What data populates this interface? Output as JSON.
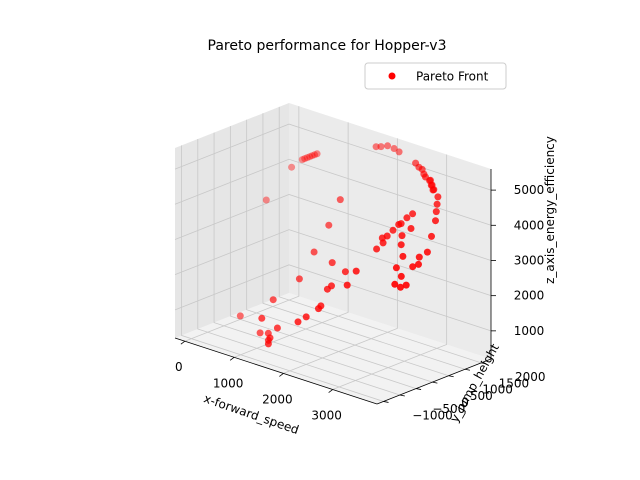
{
  "chart_data": {
    "type": "scatter",
    "projection": "3d",
    "title": "Pareto performance for Hopper-v3",
    "xlabel": "x-forward_speed",
    "ylabel": "y_jump_height",
    "zlabel": "z_axis_energy_efficiency",
    "x_ticks": [
      "0",
      "1000",
      "2000",
      "3000"
    ],
    "y_ticks": [
      "−1000",
      "−500",
      "0",
      "500",
      "1000",
      "1500",
      "2000"
    ],
    "z_ticks": [
      "1000",
      "2000",
      "3000",
      "4000",
      "5000"
    ],
    "grid": true,
    "legend": {
      "position": "upper-right",
      "entries": [
        "Pareto Front"
      ]
    },
    "series": [
      {
        "name": "Pareto Front",
        "color": "#ff0000",
        "points": [
          {
            "x": 0,
            "y": 1300,
            "z": 3300
          },
          {
            "x": 250,
            "y": 1700,
            "z": 4200
          },
          {
            "x": 400,
            "y": 1800,
            "z": 4450
          },
          {
            "x": 450,
            "y": 1800,
            "z": 4500
          },
          {
            "x": 500,
            "y": 1800,
            "z": 4550
          },
          {
            "x": 550,
            "y": 1800,
            "z": 4600
          },
          {
            "x": 600,
            "y": 1800,
            "z": 4650
          },
          {
            "x": 650,
            "y": 1800,
            "z": 4700
          },
          {
            "x": 700,
            "y": 1800,
            "z": 4750
          },
          {
            "x": 200,
            "y": 200,
            "z": 500
          },
          {
            "x": 800,
            "y": -100,
            "z": 400
          },
          {
            "x": 1000,
            "y": -150,
            "z": 500
          },
          {
            "x": 1100,
            "y": -300,
            "z": 400
          },
          {
            "x": 1200,
            "y": -400,
            "z": 550
          },
          {
            "x": 1300,
            "y": -600,
            "z": 500
          },
          {
            "x": 1350,
            "y": -400,
            "z": 900
          },
          {
            "x": 1100,
            "y": -500,
            "z": 1100
          },
          {
            "x": 1000,
            "y": 0,
            "z": 1400
          },
          {
            "x": 1400,
            "y": 200,
            "z": 2100
          },
          {
            "x": 1500,
            "y": 500,
            "z": 2800
          },
          {
            "x": 1600,
            "y": 800,
            "z": 3500
          },
          {
            "x": 1700,
            "y": 1000,
            "z": 4200
          },
          {
            "x": 1900,
            "y": -600,
            "z": 1400
          },
          {
            "x": 2000,
            "y": -500,
            "z": 1550
          },
          {
            "x": 2150,
            "y": -350,
            "z": 1800
          },
          {
            "x": 2200,
            "y": -350,
            "z": 1900
          },
          {
            "x": 2200,
            "y": -150,
            "z": 2300
          },
          {
            "x": 2250,
            "y": -100,
            "z": 2400
          },
          {
            "x": 2400,
            "y": 100,
            "z": 2800
          },
          {
            "x": 2000,
            "y": 300,
            "z": 2800
          },
          {
            "x": 2700,
            "y": -300,
            "z": 2700
          },
          {
            "x": 2750,
            "y": -100,
            "z": 3050
          },
          {
            "x": 2900,
            "y": 300,
            "z": 3600
          },
          {
            "x": 2950,
            "y": 400,
            "z": 3900
          },
          {
            "x": 3000,
            "y": 350,
            "z": 3800
          },
          {
            "x": 3050,
            "y": 400,
            "z": 4000
          },
          {
            "x": 3100,
            "y": 500,
            "z": 4150
          },
          {
            "x": 3150,
            "y": 600,
            "z": 4300
          },
          {
            "x": 3200,
            "y": 600,
            "z": 4350
          },
          {
            "x": 3250,
            "y": 700,
            "z": 4500
          },
          {
            "x": 3300,
            "y": 800,
            "z": 4600
          },
          {
            "x": 3400,
            "y": 600,
            "z": 4300
          },
          {
            "x": 3400,
            "y": 300,
            "z": 3950
          },
          {
            "x": 3350,
            "y": 400,
            "z": 4150
          },
          {
            "x": 3500,
            "y": 200,
            "z": 3700
          },
          {
            "x": 3500,
            "y": 0,
            "z": 3450
          },
          {
            "x": 3600,
            "y": 0,
            "z": 3250
          },
          {
            "x": 3600,
            "y": -200,
            "z": 3100
          },
          {
            "x": 3650,
            "y": -100,
            "z": 3000
          },
          {
            "x": 3700,
            "y": 0,
            "z": 3050
          },
          {
            "x": 3700,
            "y": 200,
            "z": 3500
          },
          {
            "x": 3700,
            "y": 400,
            "z": 3700
          },
          {
            "x": 3750,
            "y": 300,
            "z": 3550
          },
          {
            "x": 3800,
            "y": 500,
            "z": 3850
          },
          {
            "x": 3750,
            "y": 700,
            "z": 4200
          },
          {
            "x": 3700,
            "y": 900,
            "z": 4550
          },
          {
            "x": 3650,
            "y": 1000,
            "z": 4750
          },
          {
            "x": 3600,
            "y": 1100,
            "z": 4900
          },
          {
            "x": 3550,
            "y": 1200,
            "z": 5050
          },
          {
            "x": 3400,
            "y": 1300,
            "z": 5150
          },
          {
            "x": 3300,
            "y": 1400,
            "z": 5200
          },
          {
            "x": 3200,
            "y": 1500,
            "z": 5250
          },
          {
            "x": 3100,
            "y": 1500,
            "z": 5300
          },
          {
            "x": 3000,
            "y": 1600,
            "z": 5300
          },
          {
            "x": 2900,
            "y": 1700,
            "z": 5350
          },
          {
            "x": 2800,
            "y": 1750,
            "z": 5350
          },
          {
            "x": 2700,
            "y": 1800,
            "z": 5400
          },
          {
            "x": 3350,
            "y": 1350,
            "z": 5100
          },
          {
            "x": 3250,
            "y": 1450,
            "z": 5150
          },
          {
            "x": 3150,
            "y": 1550,
            "z": 5200
          },
          {
            "x": 1700,
            "y": 2100,
            "z": 5300
          },
          {
            "x": 1800,
            "y": 2100,
            "z": 5350
          },
          {
            "x": 1900,
            "y": 2150,
            "z": 5400
          },
          {
            "x": 2000,
            "y": 2200,
            "z": 5350
          },
          {
            "x": 2100,
            "y": 2200,
            "z": 5300
          }
        ]
      }
    ]
  }
}
